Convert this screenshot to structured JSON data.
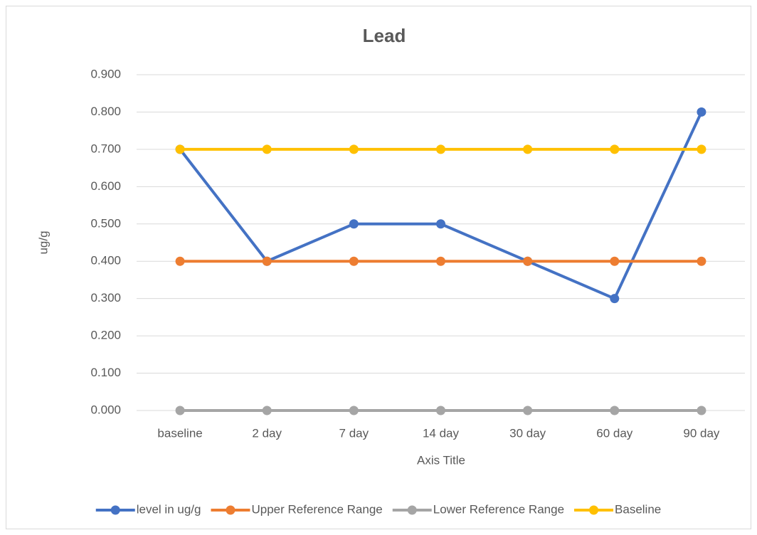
{
  "chart_data": {
    "type": "line",
    "title": "Lead",
    "x_label": "Axis Title",
    "y_label": "ug/g",
    "categories": [
      "baseline",
      "2 day",
      "7 day",
      "14 day",
      "30 day",
      "60 day",
      "90 day"
    ],
    "series": [
      {
        "name": "level in ug/g",
        "color": "#4472c4",
        "values": [
          0.7,
          0.4,
          0.5,
          0.5,
          0.4,
          0.3,
          0.8
        ]
      },
      {
        "name": "Upper  Reference Range",
        "color": "#ed7d31",
        "values": [
          0.4,
          0.4,
          0.4,
          0.4,
          0.4,
          0.4,
          0.4
        ]
      },
      {
        "name": "Lower Reference Range",
        "color": "#a5a5a5",
        "values": [
          0,
          0,
          0,
          0,
          0,
          0,
          0
        ]
      },
      {
        "name": "Baseline",
        "color": "#ffc000",
        "values": [
          0.7,
          0.7,
          0.7,
          0.7,
          0.7,
          0.7,
          0.7
        ]
      }
    ],
    "ylim": [
      0,
      0.9
    ],
    "yticks": [
      {
        "value": 0,
        "label": "0.000"
      },
      {
        "value": 0.1,
        "label": "0.100"
      },
      {
        "value": 0.2,
        "label": "0.200"
      },
      {
        "value": 0.3,
        "label": "0.300"
      },
      {
        "value": 0.4,
        "label": "0.400"
      },
      {
        "value": 0.5,
        "label": "0.500"
      },
      {
        "value": 0.6,
        "label": "0.600"
      },
      {
        "value": 0.7,
        "label": "0.700"
      },
      {
        "value": 0.8,
        "label": "0.800"
      },
      {
        "value": 0.9,
        "label": "0.900"
      }
    ],
    "grid": true,
    "legend": "bottom"
  }
}
